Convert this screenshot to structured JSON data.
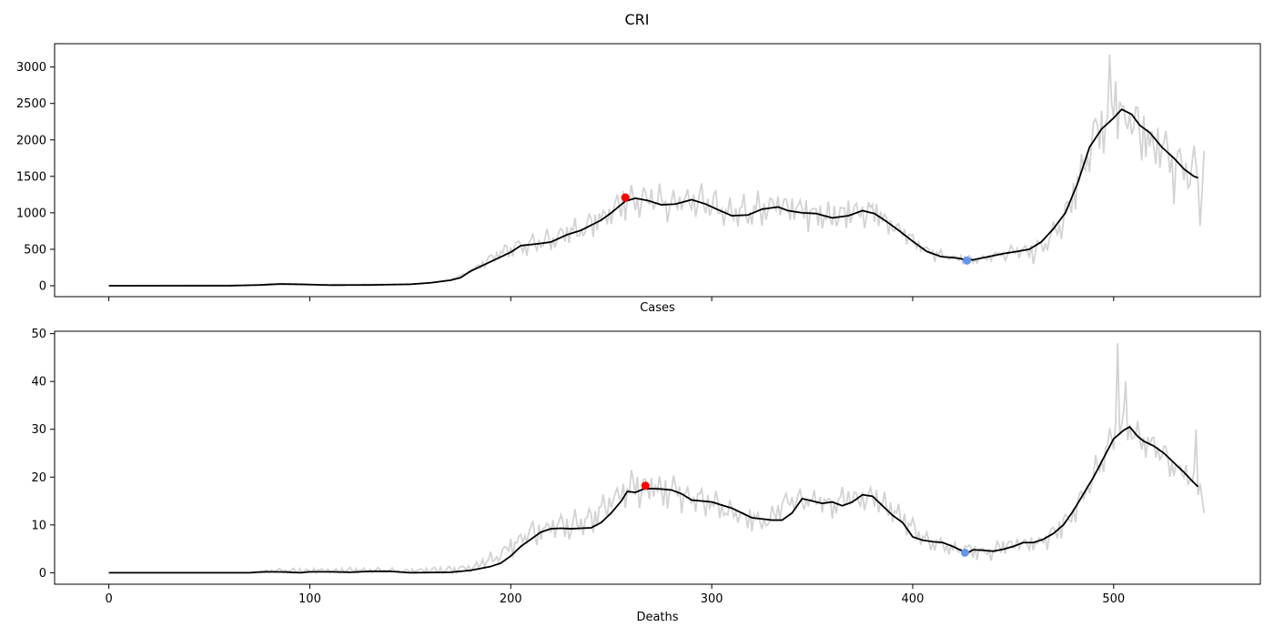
{
  "title": "CRI",
  "chart_data": [
    {
      "type": "line",
      "xlabel": "Cases",
      "ylabel": "",
      "xlim": [
        -27,
        573
      ],
      "ylim": [
        -150,
        3320
      ],
      "xticks": [
        0,
        100,
        200,
        300,
        400,
        500
      ],
      "show_xtick_labels": false,
      "yticks": [
        0,
        500,
        1000,
        1500,
        2000,
        2500,
        3000
      ],
      "grid": false,
      "colors": {
        "raw": "#d3d3d3",
        "smooth": "#000000",
        "peak": "#ff0000",
        "trough": "#6495ed"
      },
      "raw_series_anchors": [
        [
          0,
          0
        ],
        [
          150,
          20
        ],
        [
          160,
          40
        ],
        [
          170,
          80
        ],
        [
          180,
          200
        ],
        [
          190,
          380
        ],
        [
          200,
          500
        ],
        [
          210,
          560
        ],
        [
          220,
          600
        ],
        [
          230,
          700
        ],
        [
          240,
          820
        ],
        [
          250,
          1000
        ],
        [
          260,
          1200
        ],
        [
          270,
          1150
        ],
        [
          280,
          1120
        ],
        [
          290,
          1180
        ],
        [
          300,
          1100
        ],
        [
          310,
          960
        ],
        [
          320,
          1000
        ],
        [
          330,
          1070
        ],
        [
          340,
          1020
        ],
        [
          350,
          990
        ],
        [
          360,
          930
        ],
        [
          370,
          1000
        ],
        [
          380,
          1000
        ],
        [
          390,
          820
        ],
        [
          400,
          620
        ],
        [
          410,
          430
        ],
        [
          420,
          380
        ],
        [
          430,
          350
        ],
        [
          440,
          400
        ],
        [
          450,
          450
        ],
        [
          460,
          470
        ],
        [
          470,
          650
        ],
        [
          480,
          1200
        ],
        [
          490,
          2000
        ],
        [
          500,
          2450
        ],
        [
          510,
          2200
        ],
        [
          520,
          1900
        ],
        [
          530,
          1600
        ],
        [
          540,
          1500
        ],
        [
          545,
          1480
        ]
      ],
      "raw_noise_amplitude": [
        [
          0,
          0
        ],
        [
          170,
          0
        ],
        [
          180,
          40
        ],
        [
          200,
          150
        ],
        [
          250,
          300
        ],
        [
          300,
          320
        ],
        [
          380,
          260
        ],
        [
          400,
          120
        ],
        [
          440,
          80
        ],
        [
          480,
          300
        ],
        [
          500,
          550
        ],
        [
          545,
          500
        ]
      ],
      "raw_extra_points": [
        [
          545,
          1850
        ],
        [
          543,
          820
        ],
        [
          498,
          3170
        ]
      ],
      "smooth_series": [
        [
          0,
          0
        ],
        [
          60,
          0
        ],
        [
          75,
          10
        ],
        [
          85,
          25
        ],
        [
          95,
          20
        ],
        [
          110,
          8
        ],
        [
          130,
          10
        ],
        [
          150,
          20
        ],
        [
          160,
          40
        ],
        [
          170,
          75
        ],
        [
          175,
          110
        ],
        [
          180,
          200
        ],
        [
          190,
          330
        ],
        [
          200,
          460
        ],
        [
          205,
          550
        ],
        [
          215,
          580
        ],
        [
          220,
          600
        ],
        [
          228,
          700
        ],
        [
          235,
          760
        ],
        [
          240,
          830
        ],
        [
          245,
          900
        ],
        [
          250,
          1000
        ],
        [
          257,
          1160
        ],
        [
          262,
          1200
        ],
        [
          268,
          1170
        ],
        [
          275,
          1110
        ],
        [
          282,
          1120
        ],
        [
          290,
          1180
        ],
        [
          297,
          1120
        ],
        [
          305,
          1020
        ],
        [
          310,
          960
        ],
        [
          318,
          970
        ],
        [
          325,
          1050
        ],
        [
          333,
          1080
        ],
        [
          338,
          1030
        ],
        [
          345,
          1000
        ],
        [
          352,
          990
        ],
        [
          360,
          930
        ],
        [
          368,
          960
        ],
        [
          375,
          1030
        ],
        [
          381,
          990
        ],
        [
          387,
          880
        ],
        [
          393,
          760
        ],
        [
          400,
          610
        ],
        [
          407,
          470
        ],
        [
          414,
          400
        ],
        [
          422,
          380
        ],
        [
          426,
          360
        ],
        [
          430,
          355
        ],
        [
          438,
          400
        ],
        [
          445,
          440
        ],
        [
          452,
          470
        ],
        [
          458,
          500
        ],
        [
          464,
          600
        ],
        [
          470,
          780
        ],
        [
          476,
          1000
        ],
        [
          482,
          1400
        ],
        [
          488,
          1900
        ],
        [
          494,
          2150
        ],
        [
          500,
          2300
        ],
        [
          504,
          2420
        ],
        [
          509,
          2350
        ],
        [
          513,
          2200
        ],
        [
          518,
          2100
        ],
        [
          524,
          1900
        ],
        [
          530,
          1750
        ],
        [
          535,
          1600
        ],
        [
          540,
          1500
        ],
        [
          542,
          1480
        ]
      ],
      "markers": [
        {
          "label": "peak",
          "x": 257,
          "y": 1210
        },
        {
          "label": "trough",
          "x": 427,
          "y": 345
        }
      ]
    },
    {
      "type": "line",
      "xlabel": "Deaths",
      "ylabel": "",
      "xlim": [
        -27,
        573
      ],
      "ylim": [
        -2.4,
        50.5
      ],
      "xticks": [
        0,
        100,
        200,
        300,
        400,
        500
      ],
      "show_xtick_labels": true,
      "yticks": [
        0,
        10,
        20,
        30,
        40,
        50
      ],
      "grid": false,
      "colors": {
        "raw": "#d3d3d3",
        "smooth": "#000000",
        "peak": "#ff0000",
        "trough": "#6495ed"
      },
      "raw_series_anchors": [
        [
          0,
          0
        ],
        [
          70,
          0
        ],
        [
          80,
          0.3
        ],
        [
          100,
          0.3
        ],
        [
          120,
          0.4
        ],
        [
          140,
          0.3
        ],
        [
          170,
          0.5
        ],
        [
          180,
          1
        ],
        [
          190,
          2.5
        ],
        [
          200,
          5
        ],
        [
          210,
          8
        ],
        [
          220,
          9
        ],
        [
          230,
          9.5
        ],
        [
          240,
          11
        ],
        [
          250,
          15
        ],
        [
          260,
          17.5
        ],
        [
          270,
          17
        ],
        [
          280,
          17
        ],
        [
          290,
          15
        ],
        [
          300,
          14.5
        ],
        [
          310,
          12
        ],
        [
          320,
          11
        ],
        [
          330,
          11
        ],
        [
          340,
          15
        ],
        [
          350,
          15
        ],
        [
          360,
          14
        ],
        [
          370,
          15.5
        ],
        [
          380,
          15.5
        ],
        [
          390,
          13
        ],
        [
          400,
          9
        ],
        [
          410,
          6
        ],
        [
          420,
          5
        ],
        [
          430,
          4.5
        ],
        [
          440,
          4.5
        ],
        [
          450,
          5.5
        ],
        [
          460,
          6
        ],
        [
          470,
          8
        ],
        [
          480,
          12
        ],
        [
          490,
          20
        ],
        [
          500,
          28
        ],
        [
          505,
          31
        ],
        [
          510,
          29
        ],
        [
          520,
          26
        ],
        [
          530,
          22
        ],
        [
          540,
          19
        ],
        [
          545,
          17
        ]
      ],
      "raw_noise_amplitude": [
        [
          0,
          0
        ],
        [
          70,
          0
        ],
        [
          80,
          0.8
        ],
        [
          150,
          0.8
        ],
        [
          180,
          1.5
        ],
        [
          200,
          3
        ],
        [
          250,
          4.5
        ],
        [
          300,
          4
        ],
        [
          380,
          3.5
        ],
        [
          420,
          2
        ],
        [
          460,
          2.5
        ],
        [
          490,
          4.5
        ],
        [
          520,
          5
        ],
        [
          545,
          4
        ]
      ],
      "raw_extra_points": [
        [
          502,
          48
        ],
        [
          506,
          40
        ],
        [
          541,
          30
        ],
        [
          545,
          12.5
        ]
      ],
      "smooth_series": [
        [
          0,
          0
        ],
        [
          70,
          0
        ],
        [
          75,
          0.15
        ],
        [
          80,
          0.2
        ],
        [
          88,
          0.15
        ],
        [
          95,
          0
        ],
        [
          100,
          0.2
        ],
        [
          110,
          0.2
        ],
        [
          120,
          0.1
        ],
        [
          130,
          0.3
        ],
        [
          140,
          0.3
        ],
        [
          150,
          0
        ],
        [
          170,
          0.1
        ],
        [
          180,
          0.5
        ],
        [
          185,
          0.9
        ],
        [
          190,
          1.3
        ],
        [
          195,
          2
        ],
        [
          200,
          3.5
        ],
        [
          205,
          5.5
        ],
        [
          210,
          7
        ],
        [
          215,
          8.5
        ],
        [
          220,
          9.2
        ],
        [
          225,
          9.3
        ],
        [
          230,
          9.2
        ],
        [
          235,
          9.3
        ],
        [
          240,
          9.4
        ],
        [
          245,
          10.5
        ],
        [
          250,
          12.5
        ],
        [
          255,
          15
        ],
        [
          258,
          17
        ],
        [
          262,
          16.8
        ],
        [
          266,
          17.5
        ],
        [
          270,
          17.6
        ],
        [
          275,
          17.5
        ],
        [
          280,
          17.3
        ],
        [
          285,
          16.5
        ],
        [
          290,
          15.2
        ],
        [
          300,
          14.8
        ],
        [
          310,
          13.5
        ],
        [
          320,
          11.5
        ],
        [
          330,
          11
        ],
        [
          335,
          11
        ],
        [
          340,
          12.5
        ],
        [
          345,
          15.5
        ],
        [
          350,
          15
        ],
        [
          355,
          14.5
        ],
        [
          360,
          14.8
        ],
        [
          365,
          14
        ],
        [
          370,
          14.8
        ],
        [
          375,
          16.3
        ],
        [
          380,
          16
        ],
        [
          385,
          14
        ],
        [
          390,
          12
        ],
        [
          395,
          10.5
        ],
        [
          400,
          7.5
        ],
        [
          405,
          6.8
        ],
        [
          410,
          6.5
        ],
        [
          415,
          6.3
        ],
        [
          420,
          5.5
        ],
        [
          425,
          4.5
        ],
        [
          428,
          4.3
        ],
        [
          430,
          4.8
        ],
        [
          435,
          4.7
        ],
        [
          440,
          4.5
        ],
        [
          445,
          4.9
        ],
        [
          450,
          5.5
        ],
        [
          455,
          6.3
        ],
        [
          460,
          6.3
        ],
        [
          465,
          7
        ],
        [
          470,
          8.2
        ],
        [
          475,
          10
        ],
        [
          480,
          13
        ],
        [
          485,
          16.5
        ],
        [
          490,
          20
        ],
        [
          495,
          24
        ],
        [
          500,
          28
        ],
        [
          505,
          29.8
        ],
        [
          508,
          30.5
        ],
        [
          512,
          28.5
        ],
        [
          515,
          27.5
        ],
        [
          520,
          26.5
        ],
        [
          525,
          25
        ],
        [
          530,
          23
        ],
        [
          535,
          21
        ],
        [
          540,
          18.8
        ],
        [
          542,
          18
        ]
      ],
      "markers": [
        {
          "label": "peak",
          "x": 267,
          "y": 18.2
        },
        {
          "label": "trough",
          "x": 426,
          "y": 4.2
        }
      ]
    }
  ]
}
